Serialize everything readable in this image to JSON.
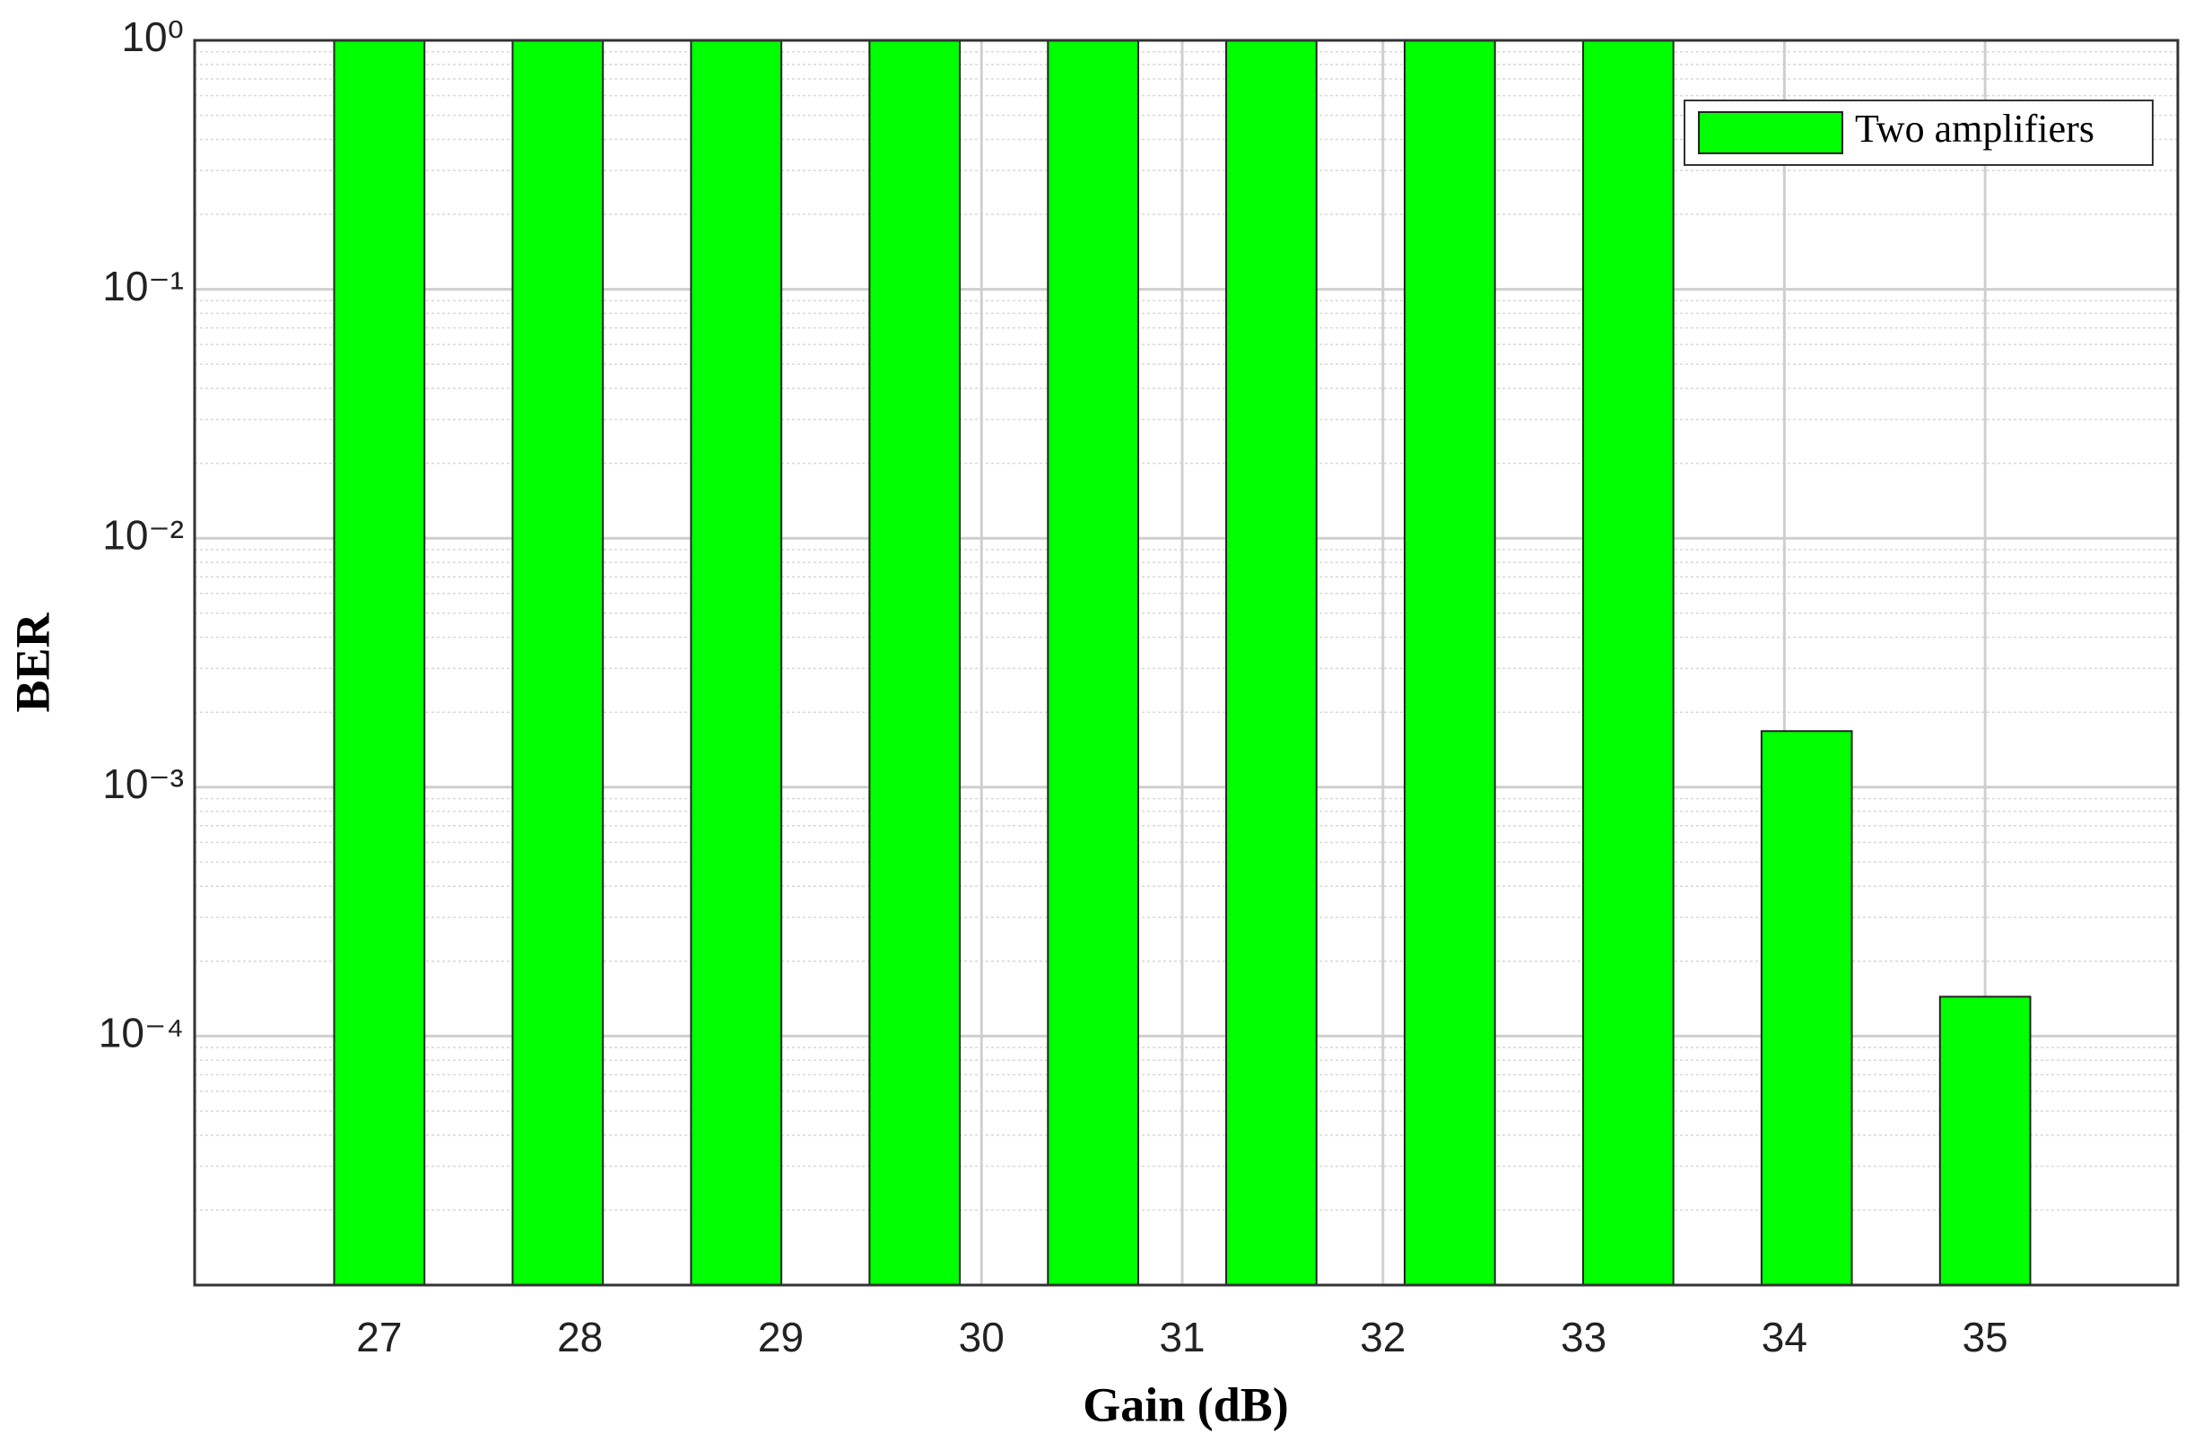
{
  "chart_data": {
    "type": "bar",
    "xlabel": "Gain (dB)",
    "ylabel": "BER",
    "x": [
      27,
      27.889,
      28.778,
      29.667,
      30.556,
      31.444,
      32.333,
      33.222,
      34.111,
      35
    ],
    "series": [
      {
        "name": "Two amplifiers",
        "color": "#00ff00",
        "values": [
          1,
          1,
          1,
          1,
          1,
          1,
          1,
          1,
          0.00168,
          0.000144
        ]
      }
    ],
    "xlim": [
      26.08,
      35.96
    ],
    "xticks": [
      27,
      28,
      29,
      30,
      31,
      32,
      33,
      34,
      35
    ],
    "ylim": [
      1e-05,
      1
    ],
    "log_y": true,
    "yticks": [
      {
        "value": 0.0001,
        "label": "10⁻⁴"
      },
      {
        "value": 0.001,
        "label": "10⁻³"
      },
      {
        "value": 0.01,
        "label": "10⁻²"
      },
      {
        "value": 0.1,
        "label": "10⁻¹"
      },
      {
        "value": 1,
        "label": "10⁰"
      }
    ],
    "grid": true,
    "minor_grid": true,
    "legend": "upper right"
  }
}
